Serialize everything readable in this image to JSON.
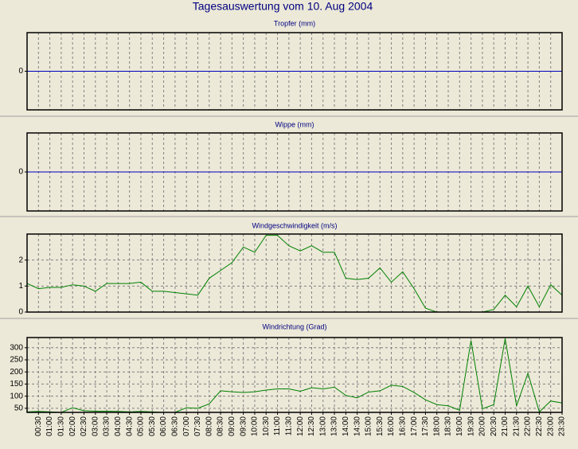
{
  "title": "Tagesauswertung vom 10. Aug 2004",
  "chart_data": [
    {
      "type": "line",
      "title": "Tropfer (mm)",
      "color": "#0000c0",
      "grid": true,
      "ylim": [
        -1,
        1
      ],
      "yticks": [
        0
      ],
      "values": [
        0,
        0,
        0,
        0,
        0,
        0,
        0,
        0,
        0,
        0,
        0,
        0,
        0,
        0,
        0,
        0,
        0,
        0,
        0,
        0,
        0,
        0,
        0,
        0,
        0,
        0,
        0,
        0,
        0,
        0,
        0,
        0,
        0,
        0,
        0,
        0,
        0,
        0,
        0,
        0,
        0,
        0,
        0,
        0,
        0,
        0,
        0,
        0
      ]
    },
    {
      "type": "line",
      "title": "Wippe (mm)",
      "color": "#0000c0",
      "grid": true,
      "ylim": [
        -1,
        1
      ],
      "yticks": [
        0
      ],
      "values": [
        0,
        0,
        0,
        0,
        0,
        0,
        0,
        0,
        0,
        0,
        0,
        0,
        0,
        0,
        0,
        0,
        0,
        0,
        0,
        0,
        0,
        0,
        0,
        0,
        0,
        0,
        0,
        0,
        0,
        0,
        0,
        0,
        0,
        0,
        0,
        0,
        0,
        0,
        0,
        0,
        0,
        0,
        0,
        0,
        0,
        0,
        0,
        0
      ]
    },
    {
      "type": "line",
      "title": "Windgeschwindigkeit (m/s)",
      "color": "#008000",
      "grid": true,
      "ylim": [
        0,
        3
      ],
      "yticks": [
        0,
        1,
        2
      ],
      "values": [
        1.1,
        0.9,
        0.95,
        0.95,
        1.05,
        1.0,
        0.8,
        1.1,
        1.1,
        1.1,
        1.15,
        0.8,
        0.8,
        0.75,
        0.7,
        0.65,
        1.3,
        1.6,
        1.9,
        2.5,
        2.3,
        2.95,
        2.95,
        2.55,
        2.35,
        2.55,
        2.3,
        2.3,
        1.3,
        1.25,
        1.3,
        1.7,
        1.15,
        1.55,
        0.9,
        0.15,
        0,
        0,
        0,
        0,
        0,
        0.1,
        0.65,
        0.2,
        1.0,
        0.2,
        1.05,
        0.65
      ]
    },
    {
      "type": "line",
      "title": "Windrichtung (Grad)",
      "color": "#008000",
      "grid": true,
      "ylim": [
        33,
        342
      ],
      "yticks": [
        50,
        100,
        150,
        200,
        250,
        300
      ],
      "values": [
        35,
        37,
        35,
        33,
        52,
        40,
        38,
        38,
        37,
        35,
        37,
        35,
        33,
        33,
        52,
        50,
        68,
        122,
        118,
        115,
        118,
        125,
        130,
        130,
        120,
        135,
        130,
        137,
        103,
        93,
        117,
        122,
        145,
        140,
        115,
        85,
        65,
        60,
        42,
        330,
        48,
        65,
        338,
        60,
        195,
        35,
        80,
        72
      ],
      "categories": [
        null,
        "00:30",
        "01:00",
        "01:30",
        "02:00",
        "02:30",
        "03:00",
        "03:30",
        "04:00",
        "04:30",
        "05:00",
        "05:30",
        "06:00",
        "06:30",
        "07:00",
        "07:30",
        "08:00",
        "08:30",
        "09:00",
        "09:30",
        "10:00",
        "10:30",
        "11:00",
        "11:30",
        "12:00",
        "12:30",
        "13:00",
        "13:30",
        "14:00",
        "14:30",
        "15:00",
        "15:30",
        "16:00",
        "16:30",
        "17:00",
        "17:30",
        "18:00",
        "18:30",
        "19:00",
        "19:30",
        "20:00",
        "20:30",
        "21:00",
        "21:30",
        "22:00",
        "22:30",
        "23:00",
        "23:30"
      ]
    }
  ]
}
